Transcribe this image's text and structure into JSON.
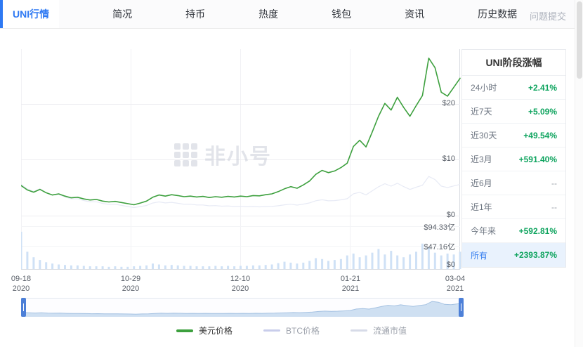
{
  "nav": {
    "tabs": [
      {
        "label": "UNI行情",
        "active": true
      },
      {
        "label": "简况",
        "active": false
      },
      {
        "label": "持币",
        "active": false
      },
      {
        "label": "热度",
        "active": false
      },
      {
        "label": "钱包",
        "active": false
      },
      {
        "label": "资讯",
        "active": false
      },
      {
        "label": "历史数据",
        "active": false
      }
    ],
    "feedback_link": "问题提交"
  },
  "stats_panel": {
    "title": "UNI阶段涨幅",
    "rows": [
      {
        "label": "24小时",
        "value": "+2.41%"
      },
      {
        "label": "近7天",
        "value": "+5.09%"
      },
      {
        "label": "近30天",
        "value": "+49.54%"
      },
      {
        "label": "近3月",
        "value": "+591.40%"
      },
      {
        "label": "近6月",
        "value": "--"
      },
      {
        "label": "近1年",
        "value": "--"
      },
      {
        "label": "今年来",
        "value": "+592.81%"
      },
      {
        "label": "所有",
        "value": "+2393.87%",
        "highlighted": true
      }
    ]
  },
  "axes": {
    "price_ticks": [
      "$20",
      "$10",
      "$0"
    ],
    "volume_ticks": [
      "$94.33亿",
      "$47.16亿",
      "$0"
    ],
    "x_ticks": [
      {
        "date": "09-18",
        "year": "2020"
      },
      {
        "date": "10-29",
        "year": "2020"
      },
      {
        "date": "12-10",
        "year": "2020"
      },
      {
        "date": "01-21",
        "year": "2021"
      },
      {
        "date": "03-04",
        "year": "2021"
      }
    ]
  },
  "watermark": "非小号",
  "legend": [
    {
      "label": "美元价格",
      "color": "#3da03e",
      "active": true
    },
    {
      "label": "BTC价格",
      "color": "#c9cdeb",
      "active": false
    },
    {
      "label": "流通市值",
      "color": "#d7dbe8",
      "active": false
    }
  ],
  "colors": {
    "accent_blue": "#2e79f3",
    "positive_green": "#0fa45f",
    "price_line_green": "#3da03e",
    "volume_bar_blue": "#cfe1f6",
    "navigator_fill": "#cfe0f2",
    "highlight_row_bg": "#e9f2fd"
  },
  "chart_data": {
    "type": "line",
    "x_range": [
      "2020-09-18",
      "2021-03-04"
    ],
    "x_tick_labels": [
      "09-18 2020",
      "10-29 2020",
      "12-10 2020",
      "01-21 2021",
      "03-04 2021"
    ],
    "price_axis": {
      "unit": "USD",
      "ticks": [
        0,
        10,
        20
      ],
      "tick_labels": [
        "$0",
        "$10",
        "$20"
      ]
    },
    "volume_axis": {
      "unit": "亿",
      "ticks": [
        0,
        47.16,
        94.33
      ],
      "tick_labels": [
        "$0",
        "$47.16亿",
        "$94.33亿"
      ]
    },
    "legend_position": "bottom",
    "legend_entries": [
      "美元价格",
      "BTC价格",
      "流通市值"
    ],
    "series": [
      {
        "name": "美元价格",
        "unit": "USD",
        "color": "#3da03e",
        "values": [
          5.4,
          4.6,
          4.2,
          4.7,
          4.1,
          3.7,
          3.9,
          3.5,
          3.2,
          3.3,
          3.0,
          2.8,
          2.9,
          2.6,
          2.45,
          2.55,
          2.35,
          2.15,
          1.95,
          2.25,
          2.6,
          3.3,
          3.7,
          3.5,
          3.75,
          3.6,
          3.4,
          3.5,
          3.35,
          3.45,
          3.25,
          3.4,
          3.3,
          3.45,
          3.35,
          3.5,
          3.4,
          3.6,
          3.55,
          3.75,
          3.9,
          4.3,
          4.8,
          5.2,
          4.9,
          5.5,
          6.2,
          7.4,
          8.1,
          7.7,
          8.0,
          8.6,
          9.4,
          12.4,
          13.5,
          12.3,
          15.0,
          17.8,
          20.1,
          18.9,
          21.2,
          19.4,
          17.8,
          19.7,
          21.5,
          28.2,
          26.5,
          22.1,
          21.4,
          23.0,
          24.6
        ]
      }
    ],
    "volume": {
      "name": "成交额",
      "unit": "亿",
      "color": "#cfe1f6",
      "values": [
        82,
        38,
        26,
        20,
        15,
        12,
        10,
        9,
        8,
        8,
        7,
        6,
        6,
        6,
        5,
        6,
        5,
        5,
        6,
        7,
        8,
        12,
        10,
        8,
        9,
        8,
        7,
        7,
        6,
        6,
        6,
        7,
        6,
        7,
        6,
        7,
        7,
        8,
        8,
        9,
        10,
        13,
        16,
        14,
        12,
        14,
        18,
        24,
        22,
        18,
        20,
        22,
        30,
        34,
        26,
        30,
        36,
        44,
        32,
        40,
        30,
        26,
        32,
        38,
        56,
        48,
        36,
        30,
        34,
        32,
        38
      ]
    }
  }
}
